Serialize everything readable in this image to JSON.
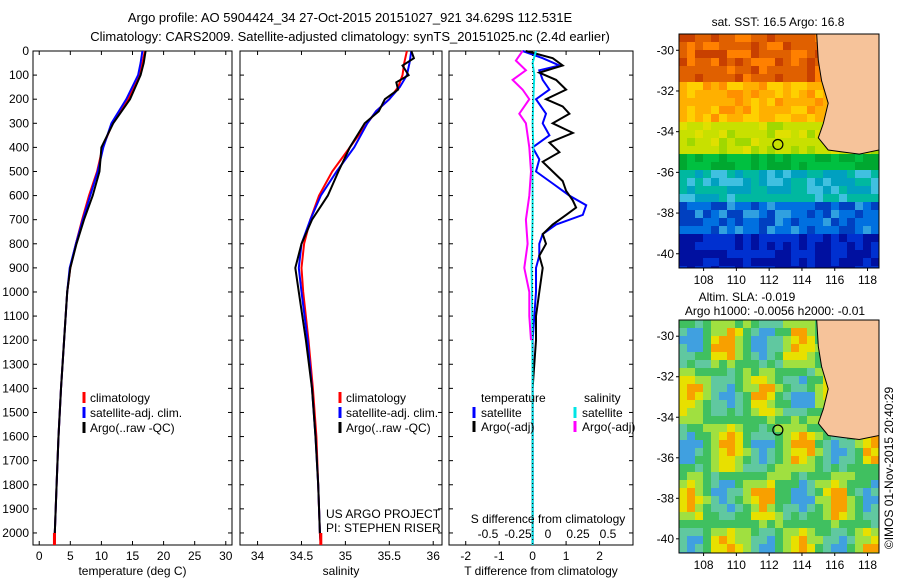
{
  "header": {
    "line1": "Argo profile: AO 5904424_34 27-Oct-2015 20151027_921 34.629S 112.531E",
    "line2": "Climatology: CARS2009. Satellite-adjusted climatology: synTS_20151025.nc (2.4d earlier)"
  },
  "colors": {
    "climatology": "#ff0000",
    "satellite": "#0000ff",
    "argo": "#000000",
    "argo_s": "#ff00ff",
    "sat_s": "#00e5e5",
    "land": "#f6c39a"
  },
  "chart_data": [
    {
      "type": "line",
      "xlabel": "temperature (deg C)",
      "ylabel": "",
      "xlim": [
        -1,
        31
      ],
      "ylim": [
        2050,
        0
      ],
      "xticks": [
        "0",
        "5",
        "10",
        "15",
        "20",
        "25",
        "30"
      ],
      "xtick_values": [
        0,
        5,
        10,
        15,
        20,
        25,
        30
      ],
      "yticks": [
        "0",
        "100",
        "200",
        "300",
        "400",
        "500",
        "600",
        "700",
        "800",
        "900",
        "1000",
        "1100",
        "1200",
        "1300",
        "1400",
        "1500",
        "1600",
        "1700",
        "1800",
        "1900",
        "2000"
      ],
      "ytick_values": [
        0,
        100,
        200,
        300,
        400,
        500,
        600,
        700,
        800,
        900,
        1000,
        1100,
        1200,
        1300,
        1400,
        1500,
        1600,
        1700,
        1800,
        1900,
        2000
      ],
      "legend": [
        "climatology",
        "satellite-adj. clim.",
        "Argo(..raw -QC)"
      ],
      "series": [
        {
          "name": "climatology",
          "color": "red",
          "depth": [
            0,
            50,
            100,
            200,
            300,
            400,
            500,
            600,
            700,
            800,
            900,
            1000,
            1200,
            1400,
            1600,
            1800,
            2000,
            2050
          ],
          "values": [
            17,
            16.6,
            16.1,
            14.3,
            11.8,
            10.2,
            9.3,
            8.0,
            6.9,
            5.9,
            5.0,
            4.5,
            4.0,
            3.5,
            3.1,
            2.8,
            2.5,
            2.45
          ]
        },
        {
          "name": "satellite-adj. clim.",
          "color": "blue",
          "depth": [
            0,
            50,
            100,
            200,
            300,
            400,
            500,
            600,
            700,
            800,
            900,
            1000,
            1200,
            1400,
            1600,
            1800,
            2000,
            2050
          ],
          "values": [
            16.6,
            16.3,
            15.9,
            14.0,
            11.6,
            10.3,
            9.4,
            8.2,
            7.0,
            5.9,
            4.9,
            4.5,
            4.0,
            3.5,
            3.1,
            2.8,
            2.5,
            2.45
          ]
        },
        {
          "name": "Argo(..raw -QC)",
          "color": "black",
          "depth": [
            0,
            50,
            100,
            200,
            300,
            400,
            500,
            600,
            700,
            800,
            900,
            1000,
            1200,
            1400,
            1600,
            1800,
            2000,
            2050
          ],
          "values": [
            17.1,
            16.8,
            16.3,
            14.6,
            11.9,
            10.0,
            9.7,
            8.6,
            7.2,
            6.0,
            5.0,
            4.5,
            4.0,
            3.5,
            3.1,
            2.8,
            2.5,
            2.45
          ]
        }
      ]
    },
    {
      "type": "line",
      "xlabel": "salinity",
      "xlim": [
        33.8,
        36.1
      ],
      "ylim": [
        2050,
        0
      ],
      "xticks": [
        "34",
        "34.5",
        "35",
        "35.5",
        "36"
      ],
      "xtick_values": [
        34,
        34.5,
        35,
        35.5,
        36
      ],
      "legend": [
        "climatology",
        "satellite-adj. clim.",
        "Argo(..raw -QC)"
      ],
      "annotation": [
        "US ARGO PROJECT",
        "PI: STEPHEN RISER"
      ],
      "series": [
        {
          "name": "climatology",
          "color": "red",
          "depth": [
            0,
            50,
            100,
            150,
            200,
            250,
            300,
            400,
            500,
            600,
            700,
            800,
            900,
            1000,
            1200,
            1400,
            1600,
            1800,
            2000,
            2050
          ],
          "values": [
            35.7,
            35.67,
            35.65,
            35.6,
            35.5,
            35.35,
            35.25,
            35.05,
            34.85,
            34.7,
            34.6,
            34.53,
            34.5,
            34.52,
            34.58,
            34.63,
            34.67,
            34.69,
            34.71,
            34.72
          ]
        },
        {
          "name": "satellite-adj. clim.",
          "color": "blue",
          "depth": [
            0,
            50,
            100,
            150,
            200,
            250,
            300,
            400,
            500,
            600,
            700,
            800,
            900,
            1000,
            1200,
            1400,
            1600,
            1800,
            2000,
            2050
          ],
          "values": [
            35.75,
            35.73,
            35.7,
            35.62,
            35.5,
            35.35,
            35.25,
            35.1,
            34.9,
            34.72,
            34.6,
            34.5,
            34.47,
            34.5,
            34.57,
            34.62,
            34.66,
            34.69,
            34.71,
            34.72
          ]
        },
        {
          "name": "Argo(..raw -QC)",
          "color": "black",
          "depth": [
            0,
            30,
            60,
            100,
            130,
            160,
            200,
            250,
            300,
            400,
            500,
            600,
            700,
            800,
            900,
            1000,
            1200,
            1400,
            1600,
            1800,
            2000,
            2050
          ],
          "values": [
            35.75,
            35.78,
            35.65,
            35.72,
            35.58,
            35.6,
            35.45,
            35.38,
            35.22,
            35.05,
            34.92,
            34.8,
            34.62,
            34.5,
            34.43,
            34.47,
            34.55,
            34.62,
            34.66,
            34.69,
            34.71,
            34.72
          ]
        }
      ]
    },
    {
      "type": "line",
      "xlabel": "T difference from climatology",
      "xlabel_top": "S difference from climatology",
      "xlim": [
        -2.5,
        3
      ],
      "ylim": [
        2050,
        0
      ],
      "xticks": [
        "-2",
        "-1",
        "0",
        "1",
        "2"
      ],
      "xtick_values": [
        -2,
        -1,
        0,
        1,
        2
      ],
      "xticks_top": [
        "-0.5",
        "-0.25",
        "0",
        "0.25",
        "0.5"
      ],
      "xtick_values_top": [
        -0.5,
        -0.25,
        0,
        0.25,
        0.5
      ],
      "legend": [
        "temperature",
        "satellite",
        "Argo(-adj)",
        "salinity",
        "satellite",
        "Argo(-adj)"
      ],
      "series": [
        {
          "name": "satellite",
          "color": "blue",
          "depth": [
            0,
            30,
            60,
            80,
            120,
            160,
            200,
            260,
            300,
            350,
            400,
            450,
            500,
            550,
            600,
            640,
            680,
            720,
            760,
            800,
            850,
            900,
            1000,
            1200,
            1400,
            1600,
            1800,
            2000,
            2050
          ],
          "values": [
            -0.3,
            0.3,
            0.8,
            0.2,
            0.3,
            0.5,
            0.1,
            0.4,
            0.3,
            0.5,
            0.0,
            0.2,
            0.1,
            0.6,
            1.1,
            1.6,
            1.5,
            0.7,
            0.3,
            0.2,
            0.2,
            0.1,
            0.1,
            0.0,
            0.0,
            0.0,
            0.0,
            0.0,
            0.0
          ]
        },
        {
          "name": "Argo(-adj)",
          "color": "black",
          "depth": [
            0,
            30,
            60,
            90,
            120,
            160,
            200,
            230,
            260,
            300,
            340,
            380,
            420,
            460,
            500,
            540,
            580,
            620,
            650,
            680,
            720,
            760,
            800,
            850,
            900,
            1000,
            1100,
            1200,
            1400,
            1600,
            1800,
            2000,
            2050
          ],
          "values": [
            -0.2,
            0.6,
            0.9,
            0.2,
            0.7,
            1.0,
            0.4,
            0.9,
            1.1,
            0.6,
            1.2,
            0.5,
            0.8,
            0.3,
            0.6,
            0.9,
            1.0,
            1.2,
            1.3,
            1.0,
            0.6,
            0.3,
            0.4,
            0.2,
            0.3,
            0.2,
            0.1,
            0.1,
            0.0,
            0.0,
            0.0,
            0.0,
            0.0
          ]
        },
        {
          "name": "salinity satellite",
          "color": "cyan",
          "depth": [
            0,
            50,
            100,
            200,
            300,
            400,
            500,
            600,
            700,
            800,
            900,
            1000,
            1200,
            1400,
            1600,
            1800,
            2000,
            2050
          ],
          "values": [
            0.1,
            0.0,
            0.05,
            0.02,
            0.0,
            0.02,
            0.0,
            0.0,
            0.0,
            -0.02,
            -0.03,
            -0.02,
            -0.01,
            0.0,
            0.0,
            0.0,
            0.0,
            0.0
          ]
        },
        {
          "name": "salinity Argo(-adj)",
          "color": "magenta",
          "depth": [
            0,
            40,
            80,
            120,
            160,
            200,
            260,
            300,
            400,
            500,
            600,
            700,
            800,
            900,
            1000,
            1100,
            1200
          ],
          "values": [
            -0.3,
            -0.5,
            -0.2,
            -0.6,
            -0.3,
            -0.1,
            -0.4,
            -0.2,
            -0.1,
            -0.05,
            -0.1,
            -0.2,
            -0.15,
            -0.25,
            -0.1,
            -0.1,
            -0.05
          ]
        }
      ]
    }
  ],
  "maps": {
    "sst": {
      "title": "sat. SST: 16.5 Argo: 16.8",
      "yticks": [
        "-30",
        "-32",
        "-34",
        "-36",
        "-38",
        "-40"
      ],
      "ytick_values": [
        -30,
        -32,
        -34,
        -36,
        -38,
        -40
      ],
      "xticks": [
        "108",
        "110",
        "112",
        "114",
        "116",
        "118"
      ],
      "xtick_values": [
        108,
        110,
        112,
        114,
        116,
        118
      ],
      "lon_range": [
        106.5,
        118.7
      ],
      "lat_range": [
        -29.2,
        -40.7
      ],
      "marker": {
        "lon": 112.531,
        "lat": -34.629
      }
    },
    "sla": {
      "title1": "Altim. SLA: -0.019",
      "title2": "Argo h1000: -0.0056 h2000: -0.01",
      "yticks": [
        "-30",
        "-32",
        "-34",
        "-36",
        "-38",
        "-40"
      ],
      "ytick_values": [
        -30,
        -32,
        -34,
        -36,
        -38,
        -40
      ],
      "xticks": [
        "108",
        "110",
        "112",
        "114",
        "116",
        "118"
      ],
      "xtick_values": [
        108,
        110,
        112,
        114,
        116,
        118
      ],
      "lon_range": [
        106.5,
        118.7
      ],
      "lat_range": [
        -29.2,
        -40.7
      ],
      "marker": {
        "lon": 112.531,
        "lat": -34.629
      }
    }
  },
  "footer": {
    "credit": "©IMOS 01-Nov-2015 20:40:29"
  }
}
